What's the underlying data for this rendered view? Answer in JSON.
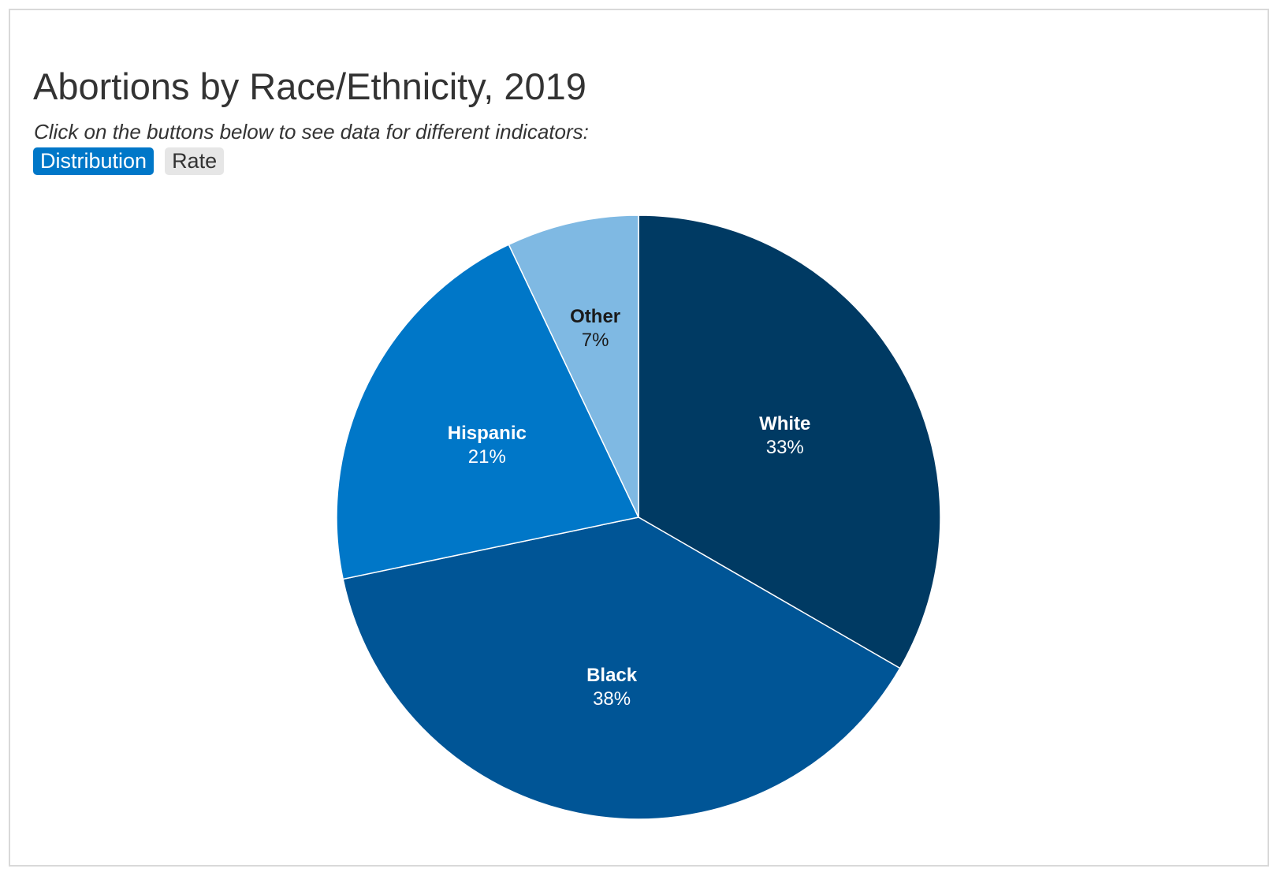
{
  "header": {
    "title": "Abortions by Race/Ethnicity, 2019",
    "subtitle": "Click on the buttons below to see data for different indicators:"
  },
  "tabs": [
    {
      "label": "Distribution",
      "active": true
    },
    {
      "label": "Rate",
      "active": false
    }
  ],
  "chart_data": {
    "type": "pie",
    "title": "Abortions by Race/Ethnicity, 2019",
    "start_angle_deg": 0,
    "direction": "clockwise",
    "slices": [
      {
        "label": "White",
        "value": 33,
        "display": "33%",
        "color": "#003a63",
        "label_color": "#ffffff"
      },
      {
        "label": "Black",
        "value": 38,
        "display": "38%",
        "color": "#005596",
        "label_color": "#ffffff"
      },
      {
        "label": "Hispanic",
        "value": 21,
        "display": "21%",
        "color": "#0077c8",
        "label_color": "#ffffff"
      },
      {
        "label": "Other",
        "value": 7,
        "display": "7%",
        "color": "#7fb9e3",
        "label_color": "#1a1a1a"
      }
    ]
  }
}
